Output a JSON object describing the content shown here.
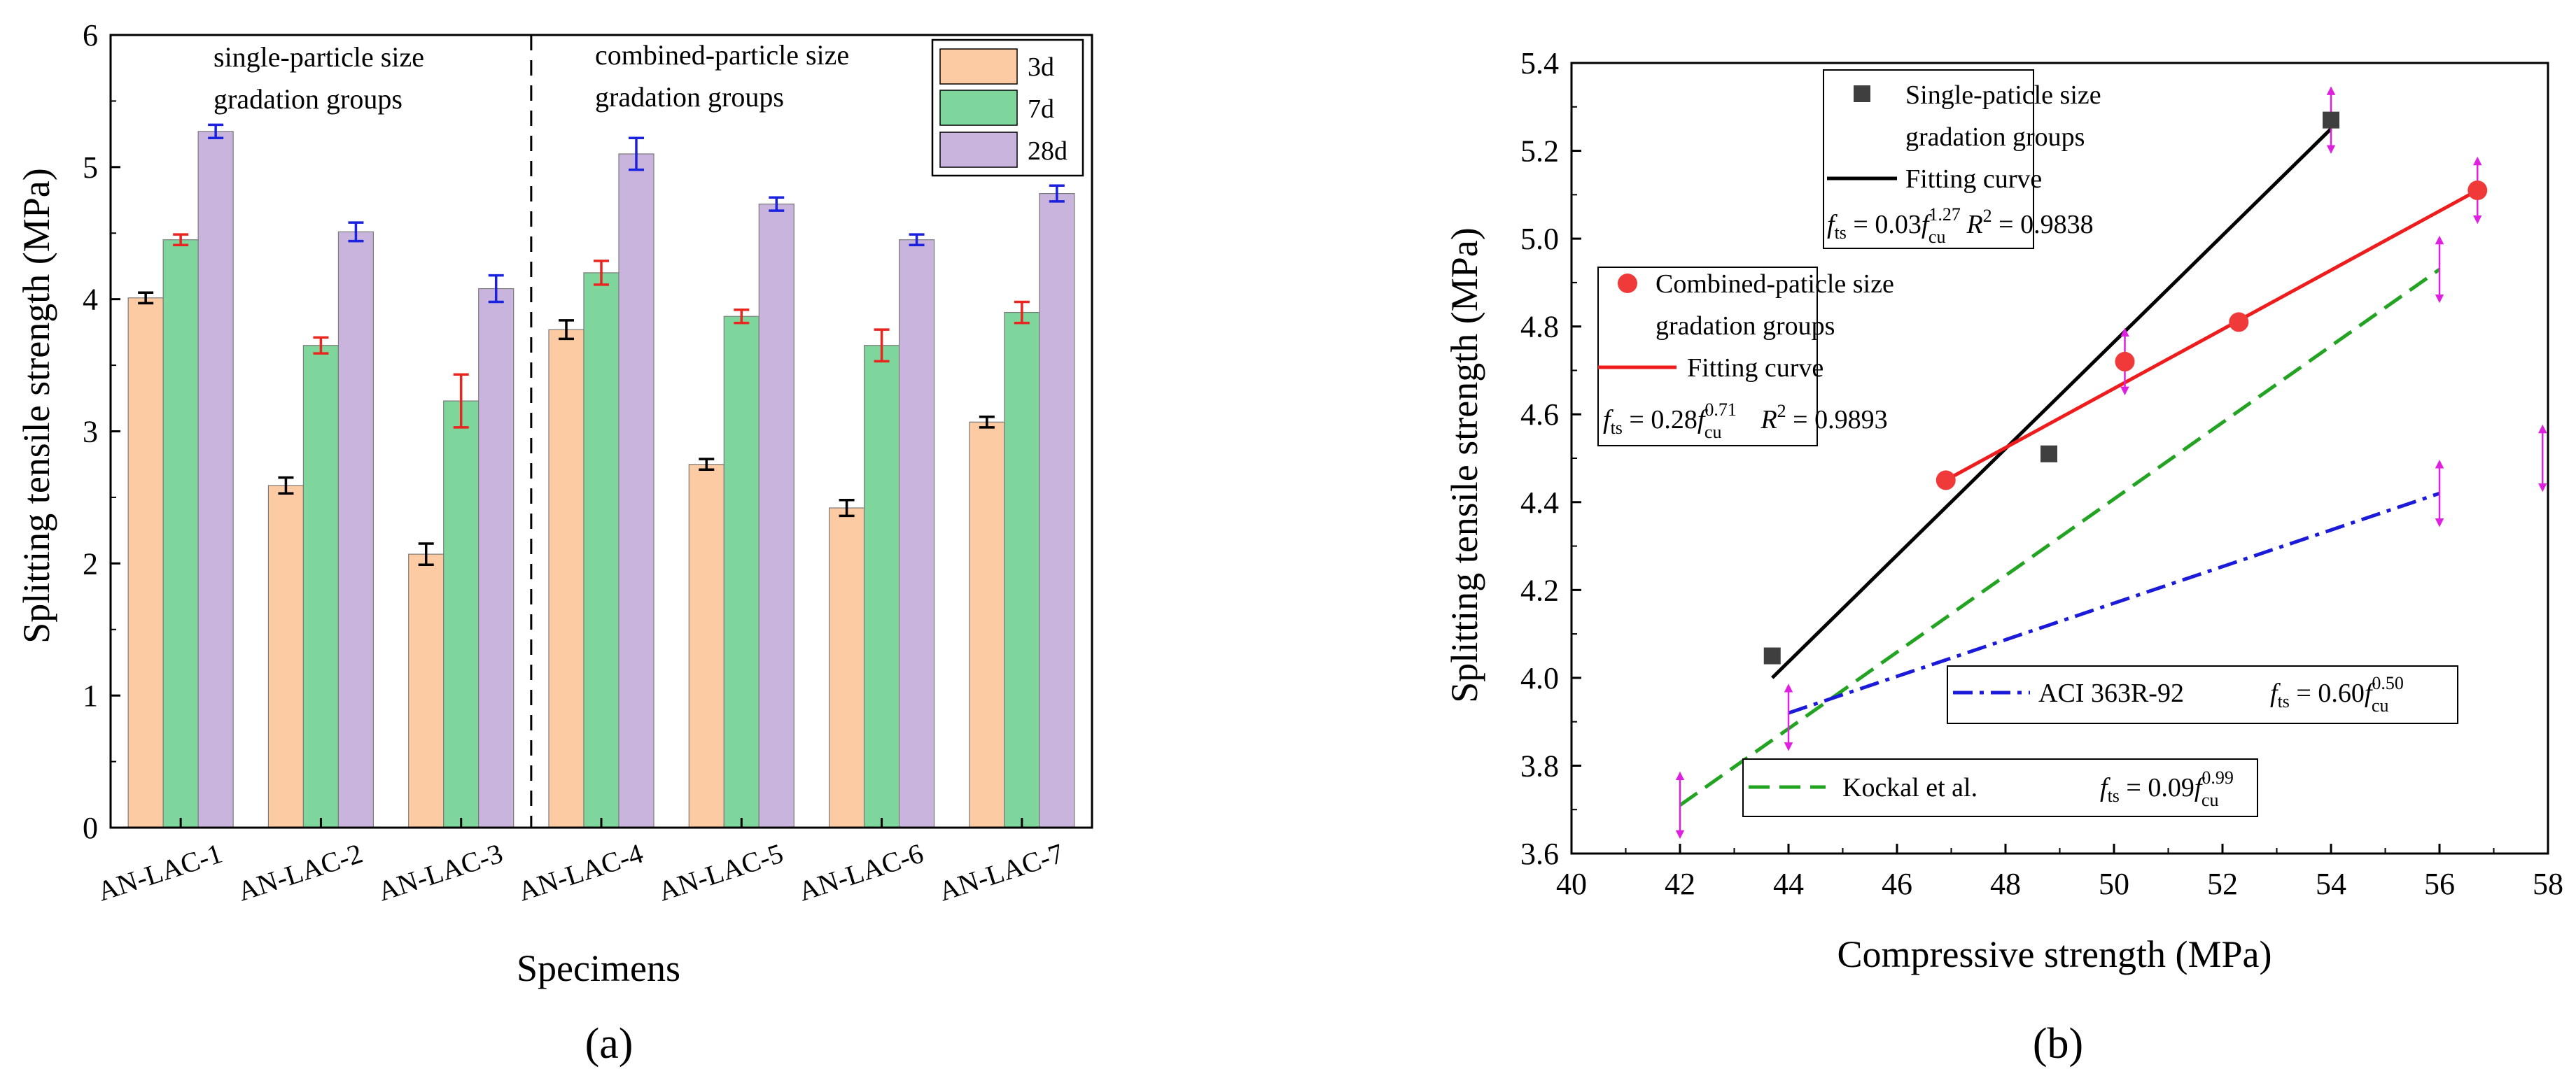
{
  "panels": {
    "a": "(a)",
    "b": "(b)"
  },
  "chart_data": [
    {
      "type": "bar",
      "xlabel": "Specimens",
      "ylabel": "Splitting tensile strength (MPa)",
      "ylim": [
        0,
        6
      ],
      "yticks": [
        "0",
        "1",
        "2",
        "3",
        "4",
        "5",
        "6"
      ],
      "categories": [
        "AN-LAC-1",
        "AN-LAC-2",
        "AN-LAC-3",
        "AN-LAC-4",
        "AN-LAC-5",
        "AN-LAC-6",
        "AN-LAC-7"
      ],
      "series": [
        {
          "name": "3d",
          "color": "#fdcba3",
          "error_color": "#000000",
          "values": [
            4.01,
            2.59,
            2.07,
            3.77,
            2.75,
            2.42,
            3.07
          ],
          "errors": [
            0.04,
            0.06,
            0.08,
            0.07,
            0.04,
            0.06,
            0.04
          ]
        },
        {
          "name": "7d",
          "color": "#7fd69c",
          "error_color": "#e8251f",
          "values": [
            4.45,
            3.65,
            3.23,
            4.2,
            3.87,
            3.65,
            3.9
          ],
          "errors": [
            0.04,
            0.06,
            0.2,
            0.09,
            0.05,
            0.12,
            0.08
          ]
        },
        {
          "name": "28d",
          "color": "#c8b4dc",
          "error_color": "#1a22e0",
          "values": [
            5.27,
            4.51,
            4.08,
            5.1,
            4.72,
            4.45,
            4.8
          ],
          "errors": [
            0.05,
            0.07,
            0.1,
            0.12,
            0.05,
            0.04,
            0.06
          ]
        }
      ],
      "annotations": [
        {
          "lines": [
            "single-particle size",
            "gradation groups"
          ]
        },
        {
          "lines": [
            "combined-particle size",
            "gradation groups"
          ]
        }
      ],
      "divider": {
        "after_category": "AN-LAC-3",
        "style": "dashed"
      },
      "legend_position": "top-right"
    },
    {
      "type": "scatter",
      "xlabel": "Compressive strength (MPa)",
      "ylabel": "Splitting tensile strength (MPa)",
      "xlim": [
        40,
        58
      ],
      "ylim": [
        3.6,
        5.4
      ],
      "xticks": [
        "40",
        "42",
        "44",
        "46",
        "48",
        "50",
        "52",
        "54",
        "56",
        "58"
      ],
      "yticks": [
        "3.6",
        "3.8",
        "4.0",
        "4.2",
        "4.4",
        "4.6",
        "4.8",
        "5.0",
        "5.2",
        "5.4"
      ],
      "series": [
        {
          "name": "Single-paticle size gradation groups",
          "marker": "square",
          "color": "#3f3f3f",
          "points": [
            [
              43.7,
              4.05
            ],
            [
              48.8,
              4.51
            ],
            [
              54.0,
              5.27
            ]
          ]
        },
        {
          "name": "Combined-paticle size gradation groups",
          "marker": "circle",
          "color": "#f03a3a",
          "points": [
            [
              46.9,
              4.45
            ],
            [
              50.2,
              4.72
            ],
            [
              52.3,
              4.81
            ],
            [
              56.7,
              5.11
            ]
          ]
        }
      ],
      "curves": [
        {
          "name": "Fitting curve",
          "group": "single",
          "color": "#000000",
          "style": "solid",
          "x": [
            43.7,
            54.0
          ],
          "y": [
            4.0,
            5.25
          ]
        },
        {
          "name": "Fitting curve",
          "group": "combined",
          "color": "#ee1c1c",
          "style": "solid",
          "x": [
            46.9,
            56.7
          ],
          "y": [
            4.45,
            5.11
          ]
        },
        {
          "name": "Kockal et al.",
          "color": "#22a322",
          "style": "dashed",
          "x": [
            42.0,
            56.0
          ],
          "y": [
            3.71,
            4.93
          ]
        },
        {
          "name": "ACI 363R-92",
          "color": "#1a1ad8",
          "style": "dashdot",
          "x": [
            44.0,
            56.0
          ],
          "y": [
            3.92,
            4.42
          ]
        }
      ],
      "error_arrows": [
        [
          42.0,
          3.71
        ],
        [
          44.0,
          3.91
        ],
        [
          50.2,
          4.72
        ],
        [
          54.0,
          5.27
        ],
        [
          56.0,
          4.93
        ],
        [
          56.0,
          4.42
        ],
        [
          56.7,
          5.11
        ],
        [
          57.9,
          4.5
        ]
      ],
      "legend_single": {
        "label1": "Single-paticle size",
        "label2": "gradation groups",
        "curve_label": "Fitting curve",
        "eq_lhs": "f",
        "eq_lhs_sub": "ts",
        "eq_mid": " = 0.03",
        "eq_f": "f",
        "eq_sup": "1.27",
        "eq_sub": "cu",
        "r2_label": "R",
        "r2_sup": "2",
        "r2_val": " = 0.9838"
      },
      "legend_combined": {
        "label1": "Combined-paticle size",
        "label2": "gradation groups",
        "curve_label": "Fitting curve",
        "eq_lhs": "f",
        "eq_lhs_sub": "ts",
        "eq_mid": " = 0.28",
        "eq_f": "f",
        "eq_sup": "0.71",
        "eq_sub": "cu",
        "r2_label": "R",
        "r2_sup": "2",
        "r2_val": " = 0.9893"
      },
      "legend_aci": {
        "label": "ACI 363R-92",
        "eq_lhs": "f",
        "eq_lhs_sub": "ts",
        "eq_mid": " = 0.60",
        "eq_f": "f",
        "eq_sup": "0.50",
        "eq_sub": "cu"
      },
      "legend_kockal": {
        "label": "Kockal et al.",
        "eq_lhs": "f",
        "eq_lhs_sub": "ts",
        "eq_mid": " = 0.09",
        "eq_f": "f",
        "eq_sup": "0.99",
        "eq_sub": "cu"
      }
    }
  ]
}
